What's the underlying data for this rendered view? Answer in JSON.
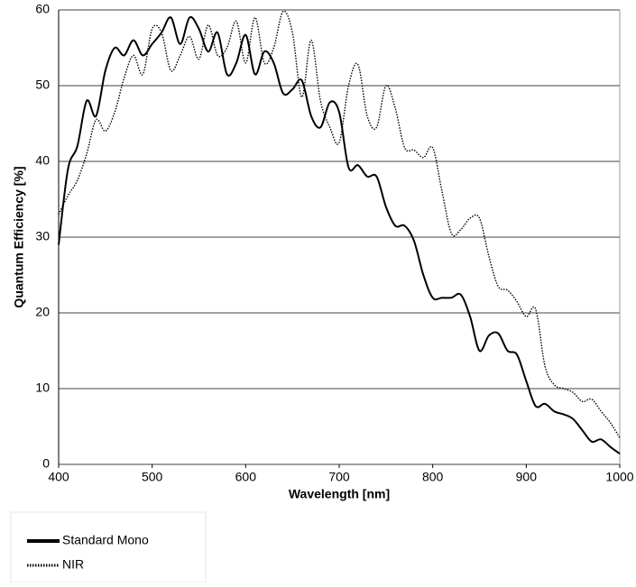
{
  "chart_data": {
    "type": "line",
    "xlabel": "Wavelength [nm]",
    "ylabel": "Quantum Efficiency [%]",
    "x": [
      400,
      410,
      420,
      430,
      440,
      450,
      460,
      470,
      480,
      490,
      500,
      510,
      520,
      530,
      540,
      550,
      560,
      570,
      580,
      590,
      600,
      610,
      620,
      630,
      640,
      650,
      660,
      670,
      680,
      690,
      700,
      710,
      720,
      730,
      740,
      750,
      760,
      770,
      780,
      790,
      800,
      810,
      820,
      830,
      840,
      850,
      860,
      870,
      880,
      890,
      900,
      910,
      920,
      930,
      940,
      950,
      960,
      970,
      980,
      990,
      1000
    ],
    "series": [
      {
        "name": "Standard Mono",
        "color": "#000000",
        "dash": "solid",
        "values": [
          29,
          39,
          42,
          48,
          46,
          52,
          55,
          54,
          56,
          54,
          55.5,
          57,
          59,
          55.5,
          59,
          57.5,
          54.5,
          57,
          51.5,
          53,
          56.7,
          51.5,
          54.5,
          53,
          49,
          49.5,
          50.7,
          46,
          44.5,
          47.8,
          46.5,
          39.2,
          39.5,
          38,
          38,
          34,
          31.5,
          31.5,
          29.5,
          25,
          22,
          22,
          22,
          22.4,
          19.5,
          15,
          17,
          17.3,
          15,
          14.5,
          11,
          7.7,
          8,
          7,
          6.6,
          6,
          4.5,
          3,
          3.3,
          2.3,
          1.4
        ]
      },
      {
        "name": "NIR",
        "color": "#000000",
        "dash": "dotted",
        "values": [
          33,
          35.5,
          37.5,
          41,
          45.5,
          44,
          46.5,
          51,
          54,
          51.5,
          57.5,
          57,
          52,
          54,
          56.5,
          53.5,
          58,
          54,
          55,
          58.5,
          53,
          59,
          53,
          55,
          59.8,
          57,
          48.5,
          56,
          48,
          44.5,
          42.5,
          50,
          52.8,
          46,
          44.5,
          50,
          47,
          41.8,
          41.5,
          40.5,
          41.8,
          36,
          30.5,
          31,
          32.5,
          32.5,
          27.5,
          23.5,
          23,
          21.5,
          19.5,
          20.5,
          13,
          10.5,
          10,
          9.5,
          8.3,
          8.6,
          7,
          5.5,
          3.5
        ]
      }
    ],
    "xlim": [
      400,
      1000
    ],
    "xticks": [
      400,
      500,
      600,
      700,
      800,
      900,
      1000
    ],
    "ylim": [
      0,
      60
    ],
    "yticks": [
      0,
      10,
      20,
      30,
      40,
      50,
      60
    ],
    "grid": true,
    "legend": "bottom-left"
  }
}
